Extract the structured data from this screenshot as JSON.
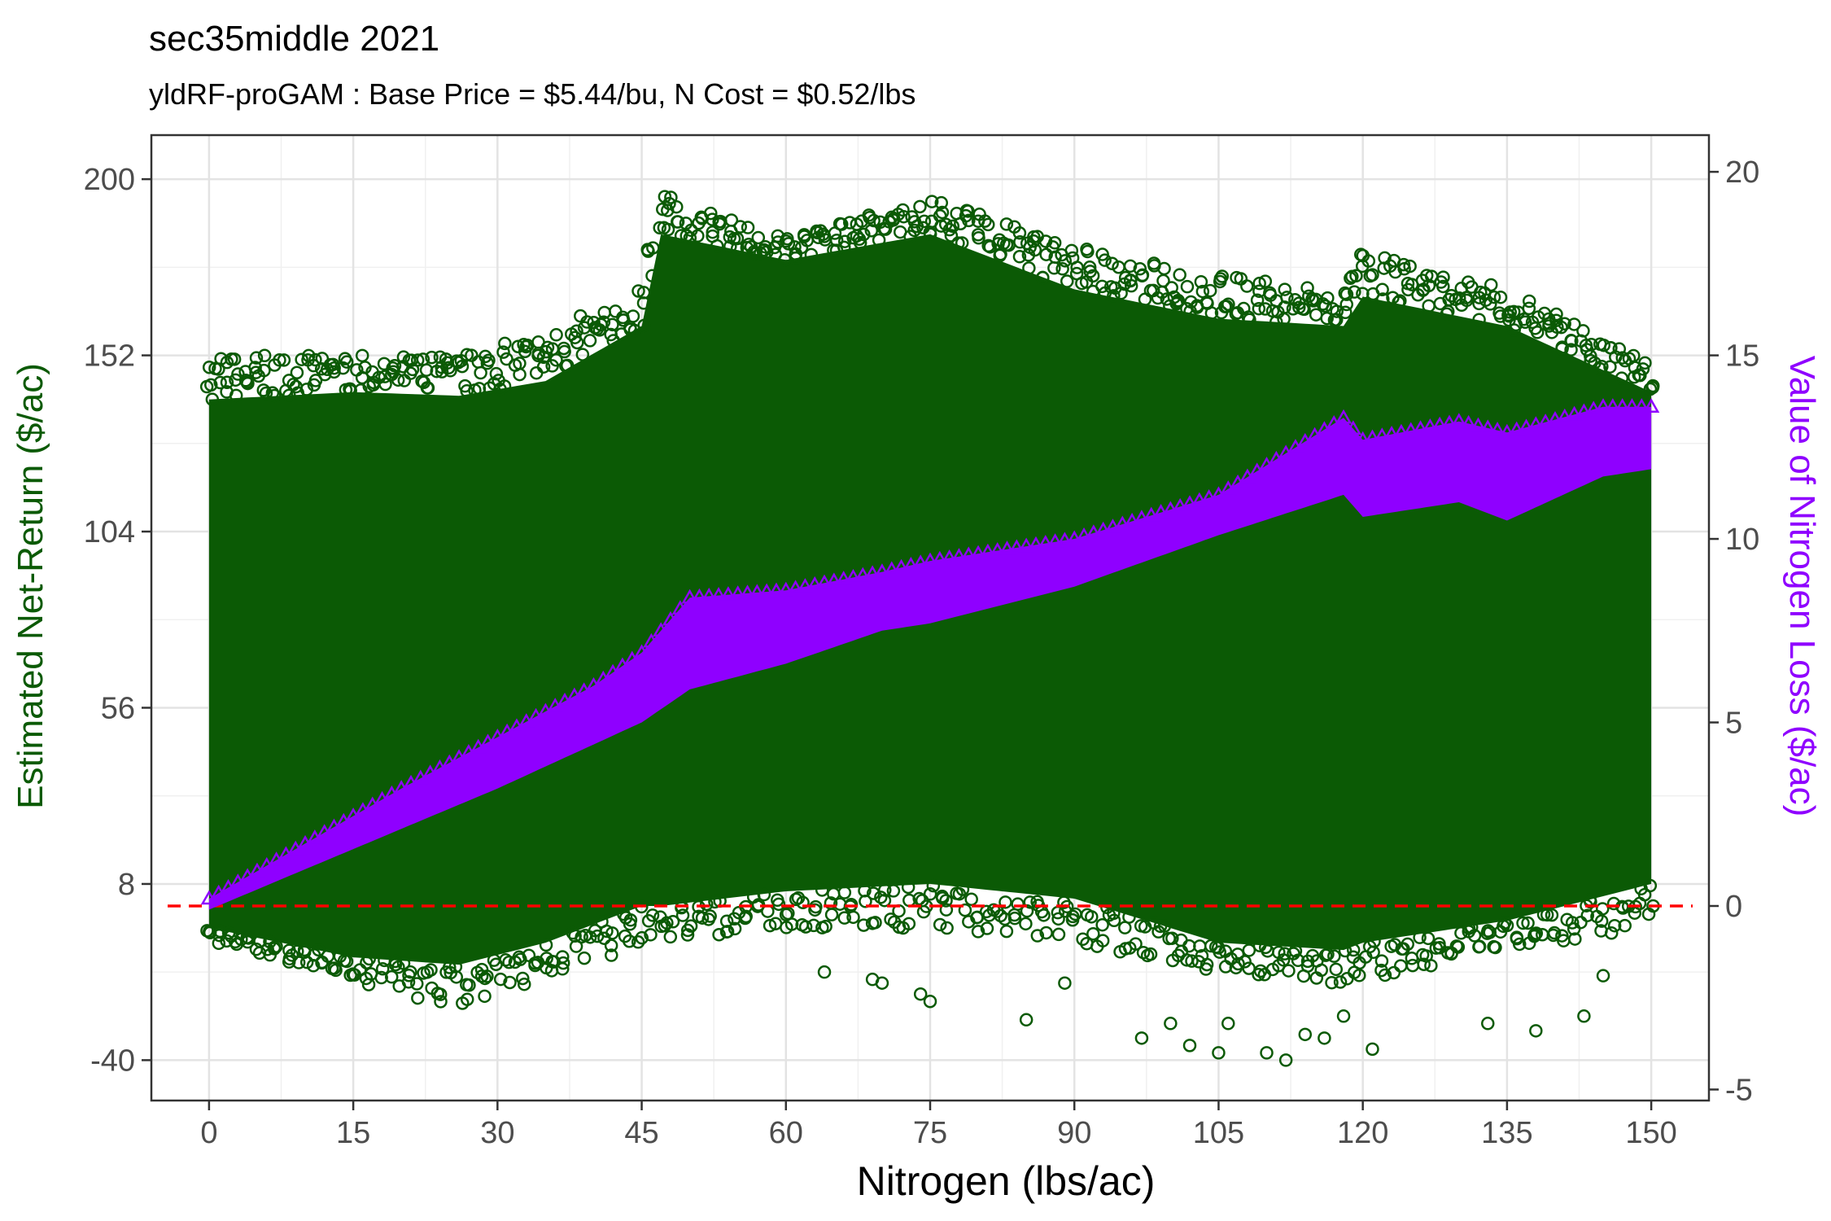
{
  "chart_data": {
    "type": "scatter",
    "title": "sec35middle 2021",
    "subtitle": "yldRF-proGAM : Base Price = $5.44/bu, N Cost = $0.52/lbs",
    "xlabel": "Nitrogen (lbs/ac)",
    "ylabel": "Estimated Net-Return ($/ac)",
    "y2label": "Value of Nitrogen Loss ($/ac)",
    "xlim": [
      -6,
      156
    ],
    "ylim": [
      -51,
      212
    ],
    "y2lim": [
      -5.3,
      21.0
    ],
    "x_ticks": [
      0,
      15,
      30,
      45,
      60,
      75,
      90,
      105,
      120,
      135,
      150
    ],
    "y_ticks": [
      -40,
      8,
      56,
      104,
      152,
      200
    ],
    "y2_ticks": [
      -5,
      0,
      5,
      10,
      15,
      20
    ],
    "grid": true,
    "reference_line": {
      "y2": 0,
      "color": "#ff0000",
      "style": "dashed"
    },
    "series": [
      {
        "axis": "left",
        "marker": "circle-open",
        "color": "#0b5a05",
        "envelope": {
          "x": [
            0,
            15,
            26,
            35,
            45,
            47,
            60,
            75,
            90,
            105,
            118,
            120,
            135,
            150
          ],
          "top": [
            140,
            142,
            141,
            145,
            160,
            185,
            178,
            185,
            170,
            162,
            160,
            168,
            160,
            142
          ],
          "upper": [
            152,
            152,
            152,
            158,
            170,
            196,
            184,
            195,
            182,
            174,
            170,
            180,
            170,
            150
          ],
          "bottom": [
            -4,
            -12,
            -14,
            -8,
            2,
            2,
            6,
            8,
            4,
            -8,
            -10,
            -8,
            -2,
            8
          ],
          "lower": [
            -8,
            -18,
            -26,
            -18,
            -10,
            -8,
            -4,
            -4,
            -8,
            -16,
            -20,
            -18,
            -10,
            -4
          ]
        },
        "outliers": [
          [
            64,
            -16
          ],
          [
            69,
            -18
          ],
          [
            70,
            -19
          ],
          [
            74,
            -22
          ],
          [
            75,
            -24
          ],
          [
            85,
            -29
          ],
          [
            89,
            -19
          ],
          [
            97,
            -34
          ],
          [
            100,
            -30
          ],
          [
            102,
            -36
          ],
          [
            105,
            -38
          ],
          [
            106,
            -30
          ],
          [
            110,
            -38
          ],
          [
            112,
            -40
          ],
          [
            114,
            -33
          ],
          [
            116,
            -34
          ],
          [
            118,
            -28
          ],
          [
            121,
            -37
          ],
          [
            133,
            -30
          ],
          [
            138,
            -32
          ],
          [
            143,
            -28
          ],
          [
            145,
            -17
          ]
        ]
      },
      {
        "axis": "right",
        "marker": "triangle",
        "color": "#8f00ff",
        "envelope": {
          "x": [
            0,
            10,
            20,
            30,
            40,
            45,
            50,
            60,
            70,
            75,
            90,
            105,
            118,
            120,
            130,
            135,
            145,
            150
          ],
          "top": [
            0.2,
            1.7,
            3.2,
            4.6,
            6.0,
            6.9,
            8.4,
            8.6,
            9.1,
            9.4,
            10.0,
            11.2,
            13.3,
            12.7,
            13.2,
            12.9,
            13.6,
            13.6
          ],
          "bottom": [
            -0.1,
            1.0,
            2.1,
            3.2,
            4.4,
            5.0,
            5.9,
            6.6,
            7.5,
            7.7,
            8.7,
            10.1,
            11.2,
            10.6,
            11.0,
            10.5,
            11.7,
            11.9
          ]
        }
      }
    ]
  }
}
